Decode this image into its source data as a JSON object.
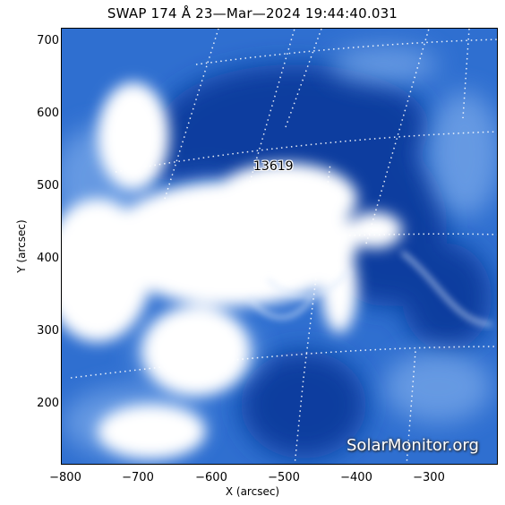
{
  "title": "SWAP 174 Å 23—Mar—2024 19:44:40.031",
  "axes": {
    "xlabel": "X (arcsec)",
    "ylabel": "Y (arcsec)",
    "x_ticks": [
      "−800",
      "−700",
      "−600",
      "−500",
      "−400",
      "−300"
    ],
    "y_ticks": [
      "700",
      "600",
      "500",
      "400",
      "300",
      "200"
    ]
  },
  "active_region_label": "13619",
  "watermark": "SolarMonitor.org",
  "colors": {
    "map_dark": "#0b3a9e",
    "map_mid": "#2f6fd0",
    "map_light": "#ffffff"
  }
}
